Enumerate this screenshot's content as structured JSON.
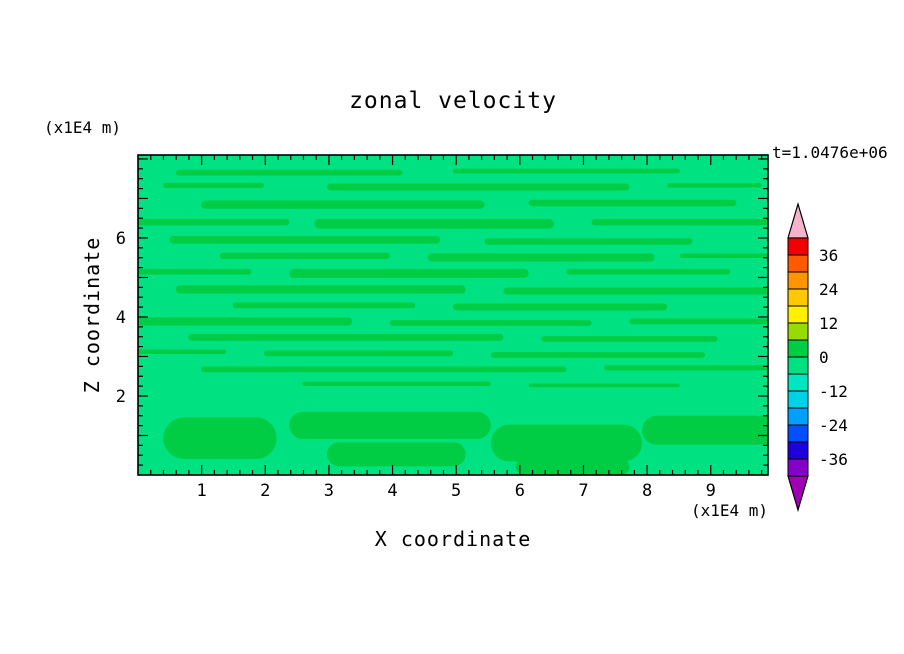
{
  "title": "zonal velocity",
  "time_label": "t=1.0476e+06",
  "axes": {
    "x": {
      "label": "X coordinate",
      "unit": "(x1E4 m)",
      "range": [
        0,
        9.9
      ],
      "major_ticks": [
        1,
        2,
        3,
        4,
        5,
        6,
        7,
        8,
        9
      ],
      "minor_step": 0.2
    },
    "y": {
      "label": "Z coordinate",
      "unit": "(x1E4 m)",
      "range": [
        0,
        8.1
      ],
      "major_ticks": [
        1,
        2,
        3,
        4,
        5,
        6,
        7,
        8
      ],
      "labeled_ticks": [
        2,
        4,
        6
      ],
      "minor_step": 0.25
    }
  },
  "colorbar": {
    "labels": [
      "36",
      "24",
      "12",
      "0",
      "-12",
      "-24",
      "-36"
    ],
    "levels": [
      -42,
      -36,
      -30,
      -24,
      -18,
      -12,
      -6,
      0,
      6,
      12,
      18,
      24,
      30,
      36,
      42
    ],
    "colors_top_to_bottom": [
      "#F00000",
      "#FF5A00",
      "#FF9600",
      "#FFC800",
      "#FFF000",
      "#96DC00",
      "#00CC44",
      "#00E282",
      "#00E6C0",
      "#00D2E6",
      "#00A0FF",
      "#0050FF",
      "#1E00DC",
      "#8200C8"
    ],
    "over_arrow_color": "#F5B4CC",
    "under_arrow_color": "#A000B4"
  },
  "field": {
    "background_color": "#00E282",
    "band_color": "#00CC44",
    "bands": [
      [
        0.06,
        0.42,
        0.055,
        0.018
      ],
      [
        0.5,
        0.86,
        0.05,
        0.015
      ],
      [
        0.04,
        0.2,
        0.095,
        0.016
      ],
      [
        0.3,
        0.78,
        0.1,
        0.022
      ],
      [
        0.84,
        0.99,
        0.095,
        0.014
      ],
      [
        0.1,
        0.55,
        0.155,
        0.026
      ],
      [
        0.62,
        0.95,
        0.15,
        0.02
      ],
      [
        0.0,
        0.24,
        0.21,
        0.02
      ],
      [
        0.28,
        0.66,
        0.215,
        0.03
      ],
      [
        0.72,
        1.0,
        0.21,
        0.02
      ],
      [
        0.05,
        0.48,
        0.265,
        0.024
      ],
      [
        0.55,
        0.88,
        0.27,
        0.02
      ],
      [
        0.13,
        0.4,
        0.315,
        0.02
      ],
      [
        0.46,
        0.82,
        0.32,
        0.026
      ],
      [
        0.86,
        1.0,
        0.315,
        0.014
      ],
      [
        0.0,
        0.18,
        0.365,
        0.018
      ],
      [
        0.24,
        0.62,
        0.37,
        0.028
      ],
      [
        0.68,
        0.94,
        0.365,
        0.018
      ],
      [
        0.06,
        0.52,
        0.42,
        0.026
      ],
      [
        0.58,
        1.0,
        0.425,
        0.022
      ],
      [
        0.15,
        0.44,
        0.47,
        0.018
      ],
      [
        0.5,
        0.84,
        0.475,
        0.022
      ],
      [
        0.0,
        0.34,
        0.52,
        0.026
      ],
      [
        0.4,
        0.72,
        0.525,
        0.018
      ],
      [
        0.78,
        1.0,
        0.52,
        0.018
      ],
      [
        0.08,
        0.58,
        0.57,
        0.022
      ],
      [
        0.64,
        0.92,
        0.575,
        0.018
      ],
      [
        0.0,
        0.14,
        0.615,
        0.014
      ],
      [
        0.2,
        0.5,
        0.62,
        0.018
      ],
      [
        0.56,
        0.9,
        0.625,
        0.018
      ],
      [
        0.1,
        0.68,
        0.67,
        0.018
      ],
      [
        0.74,
        1.0,
        0.665,
        0.016
      ],
      [
        0.26,
        0.56,
        0.715,
        0.014
      ],
      [
        0.62,
        0.86,
        0.72,
        0.012
      ],
      [
        0.04,
        0.22,
        0.885,
        0.13
      ],
      [
        0.24,
        0.56,
        0.845,
        0.085
      ],
      [
        0.3,
        0.52,
        0.935,
        0.075
      ],
      [
        0.56,
        0.8,
        0.9,
        0.115
      ],
      [
        0.8,
        1.0,
        0.86,
        0.09
      ],
      [
        0.6,
        0.78,
        0.975,
        0.05
      ]
    ]
  },
  "chart_data": {
    "type": "heatmap",
    "title": "zonal velocity",
    "xlabel": "X coordinate (x1E4 m)",
    "ylabel": "Z coordinate (x1E4 m)",
    "time_annotation": "t=1.0476e+06",
    "x_range": [
      0,
      9.9
    ],
    "y_range": [
      0,
      8.1
    ],
    "x_ticks": [
      1,
      2,
      3,
      4,
      5,
      6,
      7,
      8,
      9
    ],
    "y_ticks": [
      2,
      4,
      6
    ],
    "contour_interval": 6,
    "contour_levels": [
      -42,
      -36,
      -30,
      -24,
      -18,
      -12,
      -6,
      0,
      6,
      12,
      18,
      24,
      30,
      36,
      42
    ],
    "colorbar_tick_labels": [
      36,
      24,
      12,
      0,
      -12,
      -24,
      -36
    ],
    "legend_position": "right",
    "grid": false,
    "field_summary": "Zonal velocity is near zero across the whole section: a background band of -6..0 (spring green) filled with thin horizontal streaks of the 0..6 band (green) through the interior, and broader 0..6 blobs near the bottom boundary."
  }
}
